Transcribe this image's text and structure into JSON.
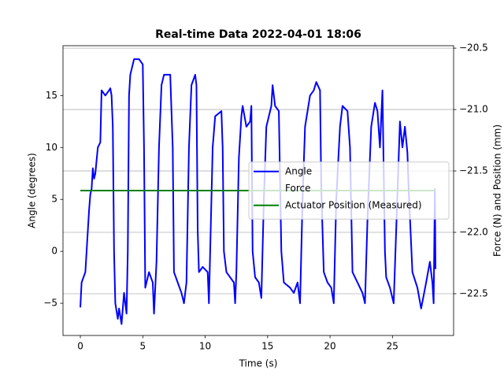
{
  "chart_data": {
    "type": "line",
    "title": "Real-time Data 2022-04-01 18:06",
    "xlabel": "Time (s)",
    "ylabel": "Angle (degrees)",
    "y2label": "Force (N) and Position (mm)",
    "xlim": [
      -1.39,
      29.9
    ],
    "xticks": [
      0,
      5,
      10,
      15,
      20,
      25
    ],
    "ylim": [
      -8.1,
      19.8
    ],
    "yticks": [
      {
        "value": -5,
        "label": "−5"
      },
      0,
      5,
      10,
      15
    ],
    "y2lim": [
      -22.84,
      -20.48
    ],
    "y2ticks": [
      {
        "value": -22.5,
        "label": "−22.5"
      },
      {
        "value": -22.0,
        "label": "−22.0"
      },
      {
        "value": -21.5,
        "label": "−21.5"
      },
      {
        "value": -21.0,
        "label": "−21.0"
      },
      {
        "value": -20.5,
        "label": "−20.5"
      }
    ],
    "grid": "y2",
    "legend": "center right",
    "series": [
      {
        "name": "Angle",
        "color": "#0000ff",
        "axis": "y",
        "x": [
          0,
          0.1,
          0.4,
          0.5,
          0.6,
          0.7,
          0.8,
          0.9,
          1.0,
          1.1,
          1.2,
          1.4,
          1.6,
          1.7,
          2.0,
          2.3,
          2.4,
          2.5,
          2.6,
          2.7,
          2.8,
          3.0,
          3.1,
          3.3,
          3.5,
          3.7,
          3.8,
          3.9,
          4.0,
          4.3,
          4.7,
          5.0,
          5.1,
          5.2,
          5.5,
          5.8,
          5.9,
          6.1,
          6.3,
          6.5,
          6.7,
          7.2,
          7.4,
          7.5,
          7.8,
          8.1,
          8.3,
          8.5,
          8.7,
          8.9,
          9.2,
          9.3,
          9.4,
          9.5,
          9.8,
          10.2,
          10.3,
          10.4,
          10.6,
          10.8,
          11.3,
          11.4,
          11.5,
          11.7,
          12.3,
          12.4,
          12.5,
          12.7,
          12.9,
          13.0,
          13.3,
          13.6,
          13.7,
          13.8,
          14.0,
          14.3,
          14.5,
          14.7,
          14.9,
          15.3,
          15.4,
          15.6,
          15.9,
          16.1,
          16.3,
          16.8,
          17.1,
          17.4,
          17.6,
          17.8,
          18.0,
          18.4,
          18.7,
          18.9,
          19.2,
          19.3,
          19.5,
          19.8,
          20.1,
          20.3,
          20.5,
          20.8,
          21.0,
          21.4,
          21.6,
          21.8,
          22.2,
          22.6,
          22.8,
          23.0,
          23.3,
          23.6,
          23.8,
          24.0,
          24.2,
          24.4,
          24.5,
          24.8,
          25.1,
          25.3,
          25.5,
          25.6,
          25.8,
          26.0,
          26.2,
          26.3,
          26.6,
          27.0,
          27.3,
          27.7,
          28.0,
          28.2,
          28.3,
          28.4,
          28.45
        ],
        "values": [
          -5.4,
          -3,
          -2,
          0,
          2,
          4,
          5.5,
          6,
          8,
          7,
          7.5,
          10,
          10.5,
          15.5,
          15,
          15.5,
          15.7,
          15,
          12,
          0,
          -5,
          -6.5,
          -5.5,
          -7,
          -4,
          -6,
          0,
          15,
          17,
          18.5,
          18.5,
          18,
          10,
          -3.5,
          -2,
          -3,
          -6,
          -1,
          10,
          16,
          17,
          17,
          10,
          -2,
          -3,
          -4,
          -5,
          -3,
          10,
          16,
          17,
          16,
          2,
          -2,
          -1.5,
          -2,
          -5,
          0,
          10,
          13,
          13.5,
          10,
          0,
          -2,
          -3,
          -5,
          -2,
          9,
          13,
          14,
          12,
          12.5,
          14,
          0,
          -2.5,
          -3,
          -4.5,
          5,
          12,
          14,
          16,
          14,
          13.5,
          0,
          -3,
          -3.5,
          -4,
          -3,
          -5,
          5,
          12,
          15,
          15.5,
          16.3,
          15.5,
          6,
          -2,
          -3,
          -3.5,
          -5,
          5,
          12,
          14,
          13.5,
          10,
          -2,
          -3,
          -4,
          -5,
          3,
          12,
          14.3,
          13.5,
          10,
          15.5,
          0,
          -2.5,
          -3.5,
          -5,
          2,
          9,
          12.5,
          10,
          12,
          9.5,
          6,
          -2,
          -3.5,
          -5.5,
          -3,
          -1,
          -3,
          -5,
          6,
          -1.7
        ]
      },
      {
        "name": "Force",
        "axis": "y2",
        "x": [
          0,
          28.4
        ],
        "values": [
          null,
          null
        ]
      },
      {
        "name": "Actuator Position (Measured)",
        "color": "#008000",
        "axis": "y2",
        "x": [
          0,
          28.4
        ],
        "values": [
          -21.66,
          -21.66
        ]
      }
    ]
  }
}
